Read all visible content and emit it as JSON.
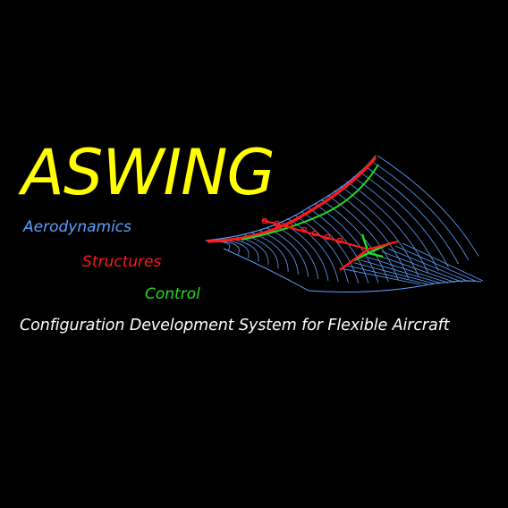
{
  "title": "ASWING",
  "disciplines": {
    "aerodynamics": "Aerodynamics",
    "structures": "Structures",
    "control": "Control"
  },
  "subtitle": "Configuration Development System for Flexible Aircraft",
  "colors": {
    "background": "#000000",
    "title": "#ffff00",
    "aerodynamics": "#5aa0ff",
    "structures": "#ff1a1a",
    "control": "#22dd22",
    "subtitle": "#ffffff",
    "wireframe": "#5f9fff"
  }
}
